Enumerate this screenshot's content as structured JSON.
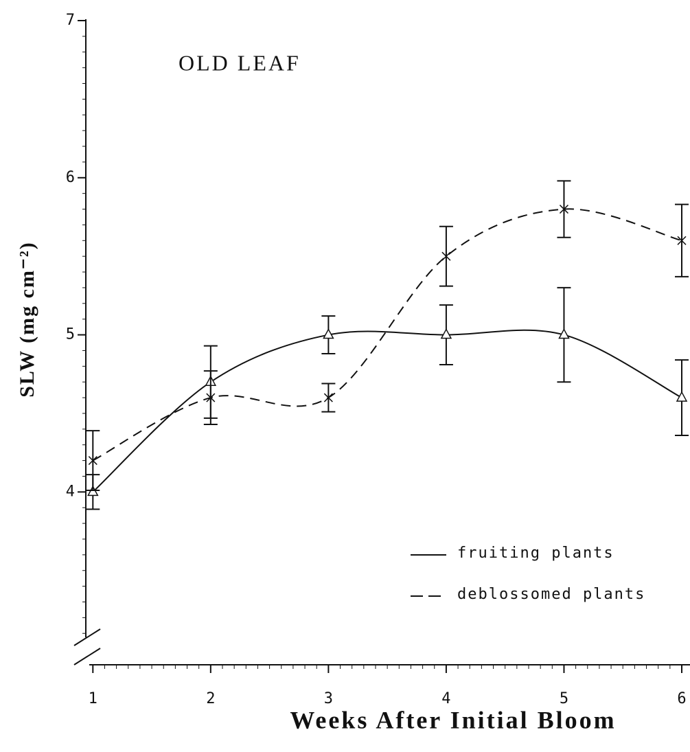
{
  "chart_data": {
    "type": "line",
    "title": "OLD LEAF",
    "x_label": "Weeks After Initial Bloom",
    "y_label": "SLW (mg cm⁻²)",
    "x": [
      1,
      2,
      3,
      4,
      5,
      6
    ],
    "xlim": [
      0.94,
      6.07
    ],
    "xticks": [
      1,
      2,
      3,
      4,
      5,
      6
    ],
    "ylim": [
      2.9,
      7
    ],
    "yticks": [
      4,
      5,
      6,
      7
    ],
    "legend": "lower right",
    "series": [
      {
        "name": "fruiting plants",
        "color": "#111111",
        "dash": "solid",
        "marker": "triangle",
        "values": [
          4.0,
          4.7,
          5.0,
          5.0,
          5.0,
          4.6
        ],
        "errors": [
          0.11,
          0.23,
          0.12,
          0.19,
          0.3,
          0.24
        ]
      },
      {
        "name": "deblossomed plants",
        "color": "#111111",
        "dash": "dashed",
        "marker": "star",
        "values": [
          4.2,
          4.6,
          4.6,
          5.5,
          5.8,
          5.6
        ],
        "errors": [
          0.19,
          0.17,
          0.09,
          0.19,
          0.18,
          0.23
        ]
      }
    ]
  }
}
